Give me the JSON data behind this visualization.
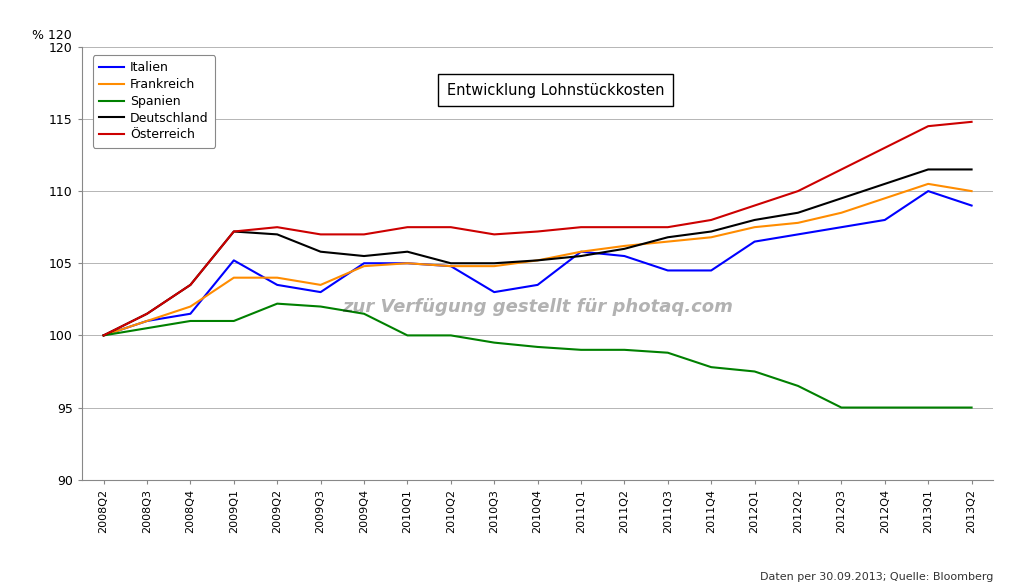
{
  "title_box": "Entwicklung Lohnstückkosten",
  "watermark": "zur Verfügung gestellt für photaq.com",
  "source_text": "Daten per 30.09.2013; Quelle: Bloomberg",
  "ylim": [
    90,
    120
  ],
  "yticks": [
    90,
    95,
    100,
    105,
    110,
    115,
    120
  ],
  "quarters": [
    "2008Q2",
    "2008Q3",
    "2008Q4",
    "2009Q1",
    "2009Q2",
    "2009Q3",
    "2009Q4",
    "2010Q1",
    "2010Q2",
    "2010Q3",
    "2010Q4",
    "2011Q1",
    "2011Q2",
    "2011Q3",
    "2011Q4",
    "2012Q1",
    "2012Q2",
    "2012Q3",
    "2012Q4",
    "2013Q1",
    "2013Q2"
  ],
  "series": {
    "Italien": {
      "color": "#0000FF",
      "values": [
        100,
        101,
        101.5,
        105.2,
        103.5,
        103.0,
        105.0,
        105.0,
        104.8,
        103.0,
        103.5,
        105.8,
        105.5,
        104.5,
        104.5,
        106.5,
        107.0,
        107.5,
        108.0,
        110.0,
        109.0
      ]
    },
    "Frankreich": {
      "color": "#FF8C00",
      "values": [
        100,
        101,
        102,
        104.0,
        104.0,
        103.5,
        104.8,
        105.0,
        104.8,
        104.8,
        105.2,
        105.8,
        106.2,
        106.5,
        106.8,
        107.5,
        107.8,
        108.5,
        109.5,
        110.5,
        110.0
      ]
    },
    "Spanien": {
      "color": "#008000",
      "values": [
        100,
        100.5,
        101,
        101.0,
        102.2,
        102.0,
        101.5,
        100.0,
        100.0,
        99.5,
        99.2,
        99.0,
        99.0,
        98.8,
        97.8,
        97.5,
        96.5,
        95.0,
        95.0,
        95.0,
        95.0
      ]
    },
    "Deutschland": {
      "color": "#000000",
      "values": [
        100,
        101.5,
        103.5,
        107.2,
        107.0,
        105.8,
        105.5,
        105.8,
        105.0,
        105.0,
        105.2,
        105.5,
        106.0,
        106.8,
        107.2,
        108.0,
        108.5,
        109.5,
        110.5,
        111.5,
        111.5
      ]
    },
    "Österreich": {
      "color": "#CC0000",
      "values": [
        100,
        101.5,
        103.5,
        107.2,
        107.5,
        107.0,
        107.0,
        107.5,
        107.5,
        107.0,
        107.2,
        107.5,
        107.5,
        107.5,
        108.0,
        109.0,
        110.0,
        111.5,
        113.0,
        114.5,
        114.8
      ]
    }
  },
  "legend_order": [
    "Italien",
    "Frankreich",
    "Spanien",
    "Deutschland",
    "Österreich"
  ],
  "background_color": "#FFFFFF",
  "grid_color": "#AAAAAA"
}
